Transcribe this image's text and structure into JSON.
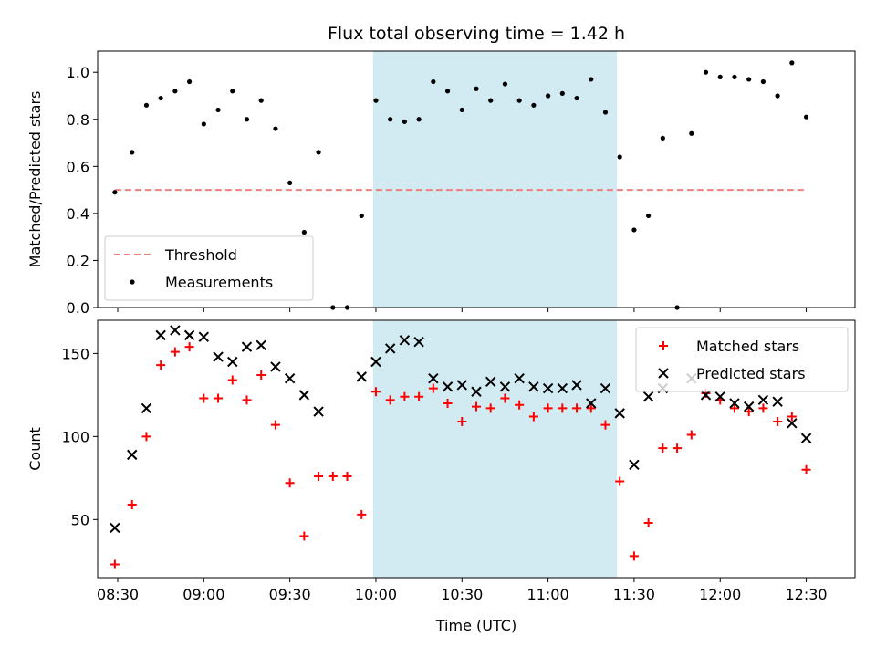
{
  "chart_data": {
    "title": "Flux total observing time = 1.42 h",
    "xlabel": "Time (UTC)",
    "x_unit": "HH:MM UTC",
    "xlim": [
      "08:23",
      "12:47"
    ],
    "x_ticks": [
      "08:30",
      "09:00",
      "09:30",
      "10:00",
      "10:30",
      "11:00",
      "11:30",
      "12:00",
      "12:30"
    ],
    "shaded_span": {
      "start": "09:59",
      "end": "11:24",
      "color": "#add8e6"
    },
    "x": [
      "08:29",
      "08:35",
      "08:40",
      "08:45",
      "08:50",
      "08:55",
      "09:00",
      "09:05",
      "09:10",
      "09:15",
      "09:20",
      "09:25",
      "09:30",
      "09:35",
      "09:40",
      "09:45",
      "09:50",
      "09:55",
      "10:00",
      "10:05",
      "10:10",
      "10:15",
      "10:20",
      "10:25",
      "10:30",
      "10:35",
      "10:40",
      "10:45",
      "10:50",
      "10:55",
      "11:00",
      "11:05",
      "11:10",
      "11:15",
      "11:20",
      "11:25",
      "11:30",
      "11:35",
      "11:40",
      "11:45",
      "11:50",
      "11:55",
      "12:00",
      "12:05",
      "12:10",
      "12:15",
      "12:20",
      "12:25",
      "12:30"
    ],
    "panels": [
      {
        "type": "scatter",
        "ylabel": "Matched/Predicted stars",
        "ylim": [
          0,
          1.09
        ],
        "y_ticks": [
          0.0,
          0.2,
          0.4,
          0.6,
          0.8,
          1.0
        ],
        "y_tick_labels": [
          "0.0",
          "0.2",
          "0.4",
          "0.6",
          "0.8",
          "1.0"
        ],
        "legend_position": "lower-left",
        "threshold": {
          "name": "Threshold",
          "value": 0.5,
          "x_start": "08:29",
          "x_end": "12:30",
          "color": "#f08080"
        },
        "series": [
          {
            "name": "Measurements",
            "marker": "dot",
            "color": "#000000",
            "values": [
              0.49,
              0.66,
              0.86,
              0.89,
              0.92,
              0.96,
              0.78,
              0.84,
              0.92,
              0.8,
              0.88,
              0.76,
              0.53,
              0.32,
              0.66,
              0.0,
              0.0,
              0.39,
              0.88,
              0.8,
              0.79,
              0.8,
              0.96,
              0.92,
              0.84,
              0.93,
              0.88,
              0.95,
              0.88,
              0.86,
              0.9,
              0.91,
              0.89,
              0.97,
              0.83,
              0.64,
              0.33,
              0.39,
              0.72,
              0.0,
              0.74,
              1.0,
              0.98,
              0.98,
              0.97,
              0.96,
              0.9,
              1.04,
              0.81
            ]
          }
        ]
      },
      {
        "type": "scatter",
        "ylabel": "Count",
        "ylim": [
          15,
          170
        ],
        "y_ticks": [
          50,
          100,
          150
        ],
        "y_tick_labels": [
          "50",
          "100",
          "150"
        ],
        "legend_position": "upper-right",
        "series": [
          {
            "name": "Matched stars",
            "marker": "plus",
            "color": "#ff0000",
            "values": [
              23,
              59,
              100,
              143,
              151,
              154,
              123,
              123,
              134,
              122,
              137,
              107,
              72,
              40,
              76,
              76,
              76,
              53,
              127,
              122,
              124,
              124,
              129,
              120,
              109,
              118,
              117,
              123,
              119,
              112,
              117,
              117,
              117,
              117,
              107,
              73,
              28,
              48,
              93,
              93,
              101,
              126,
              122,
              117,
              115,
              117,
              109,
              112,
              80
            ]
          },
          {
            "name": "Predicted stars",
            "marker": "x",
            "color": "#000000",
            "values": [
              45,
              89,
              117,
              161,
              164,
              161,
              160,
              148,
              145,
              154,
              155,
              142,
              135,
              125,
              115,
              null,
              null,
              136,
              145,
              153,
              158,
              157,
              135,
              130,
              131,
              127,
              133,
              130,
              135,
              130,
              129,
              129,
              131,
              120,
              129,
              114,
              83,
              124,
              129,
              null,
              135,
              125,
              124,
              120,
              118,
              122,
              121,
              108,
              99
            ]
          }
        ]
      }
    ]
  }
}
